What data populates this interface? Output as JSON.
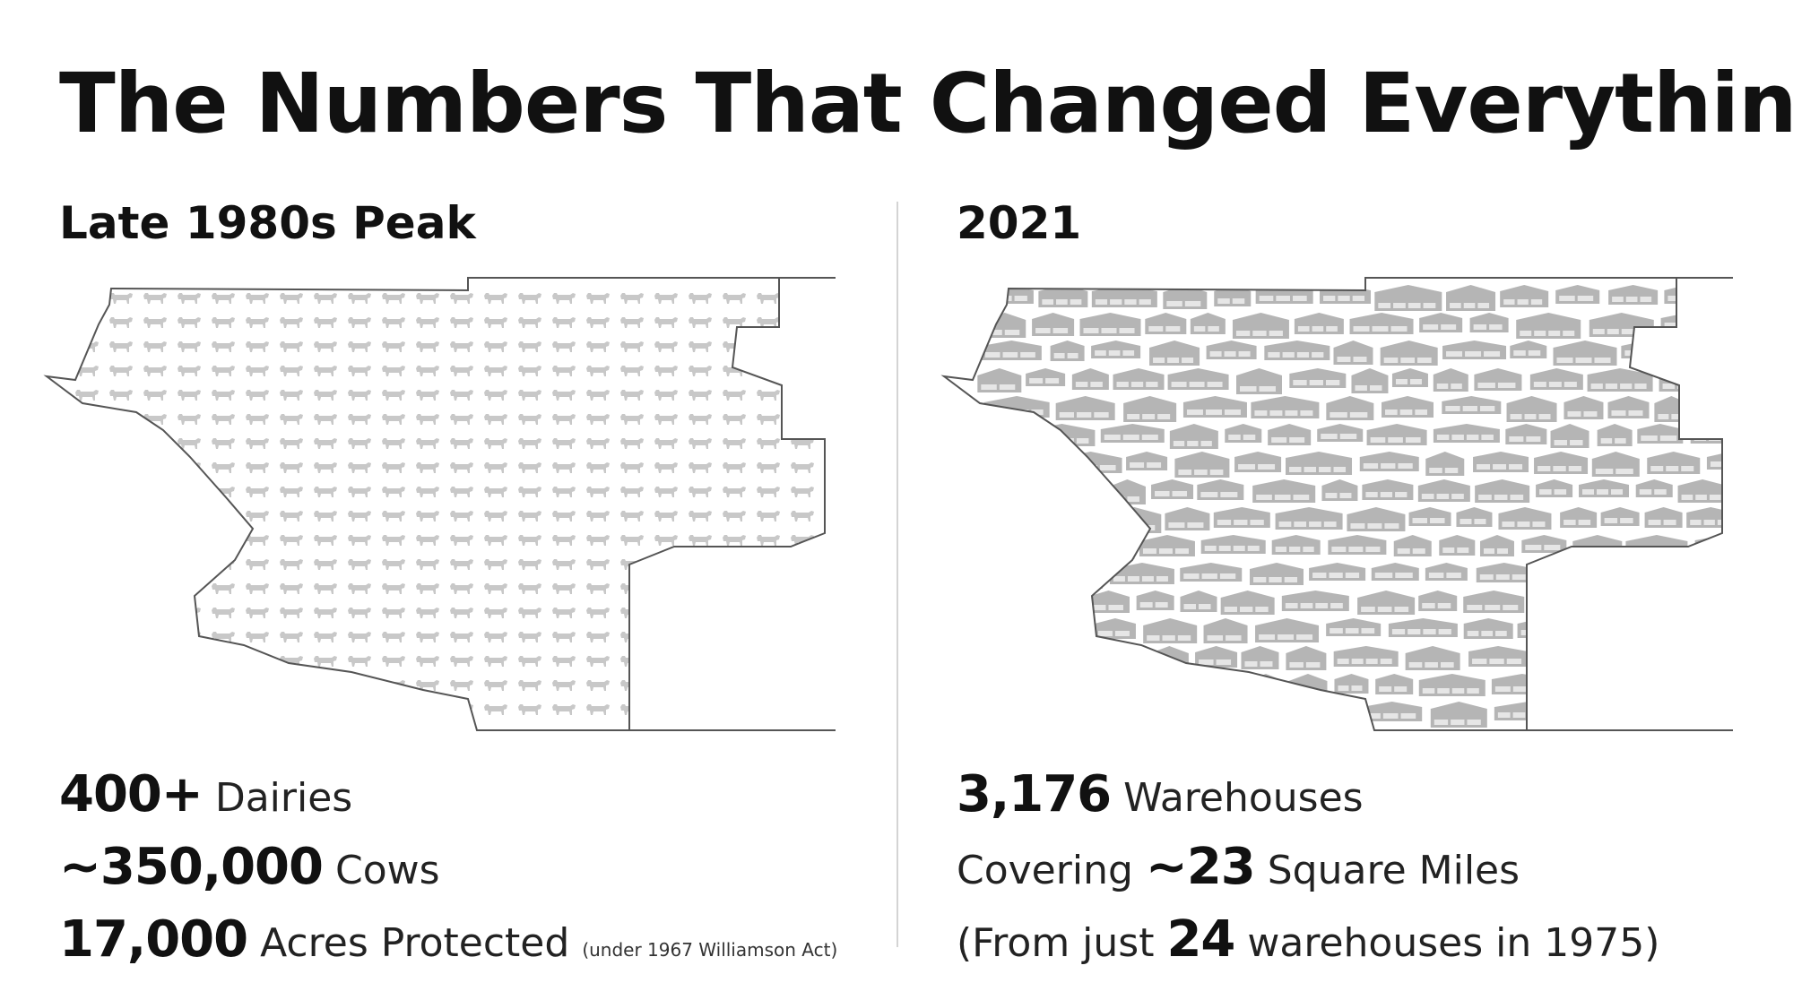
{
  "title": "The Numbers That Changed Everything",
  "colors": {
    "icon_fill": "#b5b5b5",
    "cow_fill": "#c8c8c8",
    "outline": "#555555",
    "divider": "#d4d4d4"
  },
  "left_panel": {
    "heading": "Late 1980s Peak",
    "map_icon": "cow-icon",
    "stats": [
      {
        "value": "400+",
        "label": "Dairies",
        "note": ""
      },
      {
        "value": "~350,000",
        "label": "Cows",
        "note": ""
      },
      {
        "value": "17,000",
        "label": "Acres Protected",
        "note": "(under 1967 Williamson Act)"
      }
    ]
  },
  "right_panel": {
    "heading": "2021",
    "map_icon": "warehouse-icon",
    "stats": [
      {
        "prefix": "",
        "value": "3,176",
        "suffix": "Warehouses"
      },
      {
        "prefix": "Covering",
        "value": "~23",
        "suffix": "Square Miles"
      },
      {
        "prefix": "(From just",
        "value": "24",
        "suffix": "warehouses in 1975)"
      }
    ]
  }
}
